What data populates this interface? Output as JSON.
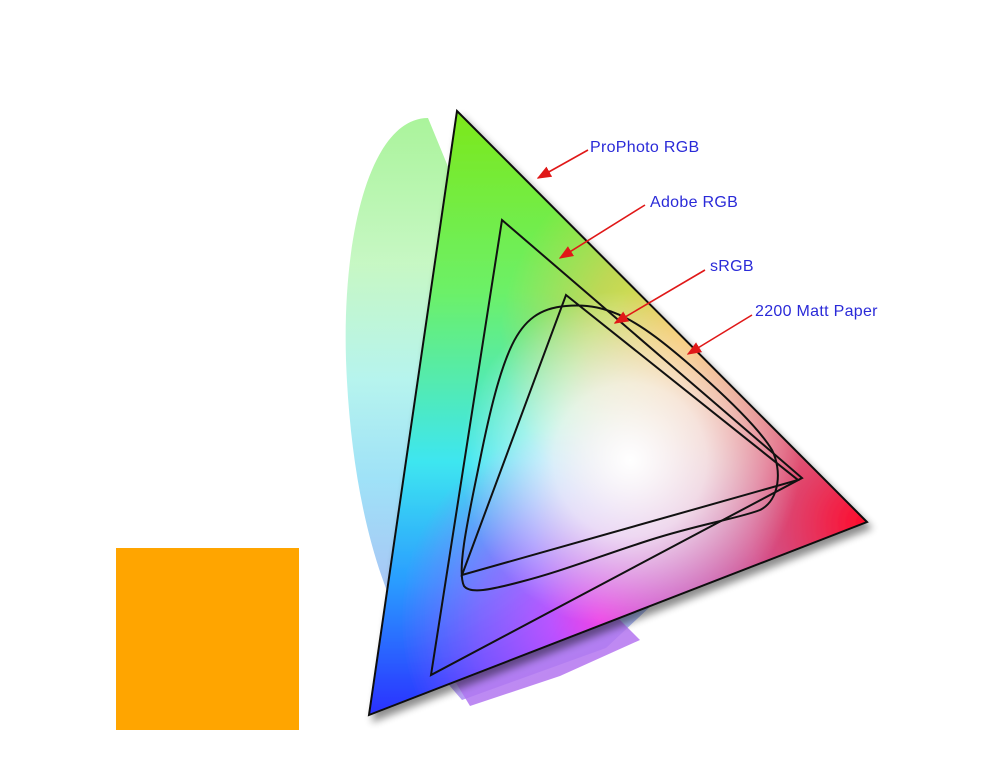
{
  "diagram": {
    "labels": {
      "prophoto": "ProPhoto RGB",
      "adobe": "Adobe RGB",
      "srgb": "sRGB",
      "paper": "2200 Matt Paper"
    },
    "colors": {
      "label_text": "#2a2ad8",
      "arrow": "#e01818",
      "outline": "#111111",
      "swatch": "#ffa500"
    }
  }
}
